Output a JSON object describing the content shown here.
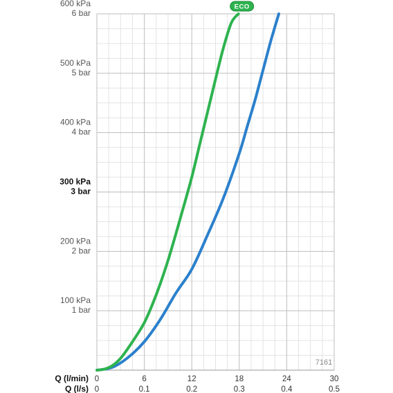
{
  "chart_data": {
    "type": "line",
    "xlabel_primary": "Q (l/min)",
    "xlabel_secondary": "Q (l/s)",
    "x_ticks_primary": [
      "0",
      "6",
      "12",
      "18",
      "24",
      "30"
    ],
    "x_ticks_secondary": [
      "0",
      "0.1",
      "0.2",
      "0.3",
      "0.4",
      "0.5"
    ],
    "xlim": [
      0,
      30
    ],
    "ylim": [
      0,
      600
    ],
    "grid": true,
    "y_ticks": [
      {
        "value": 100,
        "kpa": "100 kPa",
        "bar": "1 bar",
        "bold": false
      },
      {
        "value": 200,
        "kpa": "200 kPa",
        "bar": "2 bar",
        "bold": false
      },
      {
        "value": 300,
        "kpa": "300 kPa",
        "bar": "3 bar",
        "bold": true
      },
      {
        "value": 400,
        "kpa": "400 kPa",
        "bar": "4 bar",
        "bold": false
      },
      {
        "value": 500,
        "kpa": "500 kPa",
        "bar": "5 bar",
        "bold": false
      },
      {
        "value": 600,
        "kpa": "600 kPa",
        "bar": "6 bar",
        "bold": false
      }
    ],
    "series": [
      {
        "color": "#2eb34f",
        "badge": "ECO",
        "points": [
          [
            0,
            0
          ],
          [
            1,
            2
          ],
          [
            2,
            8
          ],
          [
            3,
            20
          ],
          [
            4,
            38
          ],
          [
            5,
            58
          ],
          [
            6,
            80
          ],
          [
            7,
            110
          ],
          [
            8,
            145
          ],
          [
            9,
            185
          ],
          [
            10,
            230
          ],
          [
            11,
            277
          ],
          [
            12,
            325
          ],
          [
            13,
            380
          ],
          [
            14,
            435
          ],
          [
            15,
            490
          ],
          [
            16,
            543
          ],
          [
            17,
            585
          ],
          [
            17.9,
            600
          ]
        ]
      },
      {
        "color": "#2b80cc",
        "points": [
          [
            0,
            0
          ],
          [
            2,
            5
          ],
          [
            4,
            22
          ],
          [
            6,
            48
          ],
          [
            8,
            85
          ],
          [
            10,
            130
          ],
          [
            12,
            170
          ],
          [
            14,
            228
          ],
          [
            16,
            290
          ],
          [
            18,
            365
          ],
          [
            19,
            410
          ],
          [
            20,
            455
          ],
          [
            21,
            505
          ],
          [
            22,
            555
          ],
          [
            23,
            600
          ]
        ]
      }
    ],
    "code_label": "7161"
  }
}
